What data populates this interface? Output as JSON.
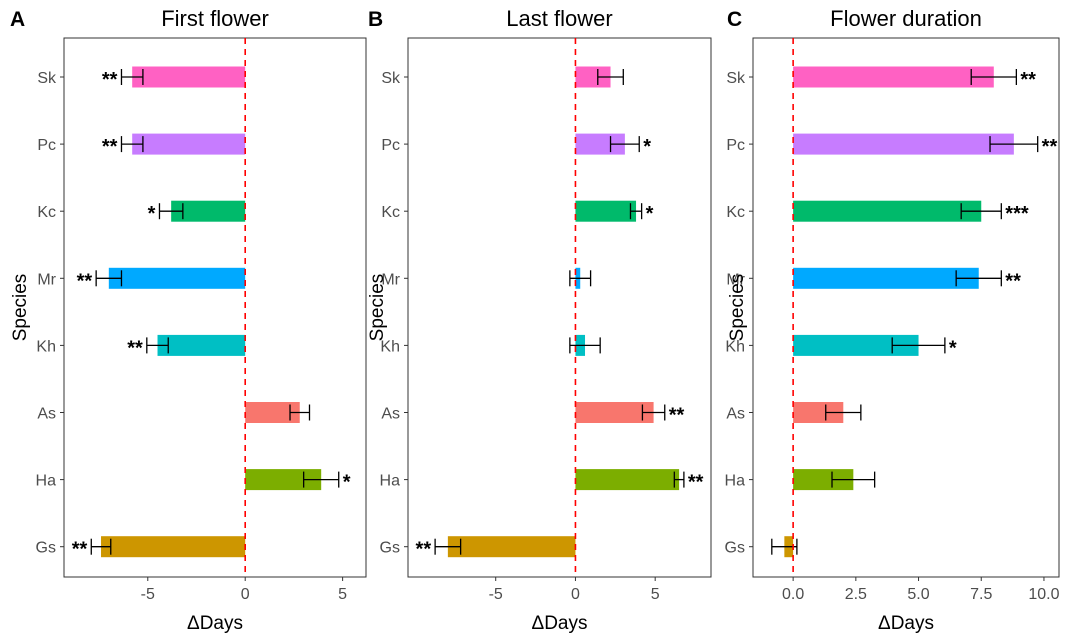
{
  "chart_data": [
    {
      "type": "bar",
      "panel_label": "A",
      "title": "First flower",
      "xlabel": "ΔDays",
      "ylabel": "Species",
      "xlim": [
        -9.3,
        6.2
      ],
      "xticks": [
        -5,
        0,
        5
      ],
      "xtick_labels": [
        "-5",
        "0",
        "5"
      ],
      "reference_line": 0,
      "categories": [
        "Sk",
        "Pc",
        "Kc",
        "Mr",
        "Kh",
        "As",
        "Ha",
        "Gs"
      ],
      "values": [
        -5.8,
        -5.8,
        -3.8,
        -7.0,
        -4.5,
        2.8,
        3.9,
        -7.4
      ],
      "error": [
        0.55,
        0.55,
        0.6,
        0.65,
        0.55,
        0.5,
        0.9,
        0.5
      ],
      "significance": [
        "**",
        "**",
        "*",
        "**",
        "**",
        "",
        "*",
        "**"
      ],
      "colors": [
        "#FF61C3",
        "#C77CFF",
        "#00BA6B",
        "#00A9FF",
        "#00BFC4",
        "#F8766D",
        "#7CAE00",
        "#CD9600"
      ],
      "grid": false
    },
    {
      "type": "bar",
      "panel_label": "B",
      "title": "Last flower",
      "xlabel": "ΔDays",
      "ylabel": "Species",
      "xlim": [
        -10.5,
        8.5
      ],
      "xticks": [
        -5,
        0,
        5
      ],
      "xtick_labels": [
        "-5",
        "0",
        "5"
      ],
      "reference_line": 0,
      "categories": [
        "Sk",
        "Pc",
        "Kc",
        "Mr",
        "Kh",
        "As",
        "Ha",
        "Gs"
      ],
      "values": [
        2.2,
        3.1,
        3.8,
        0.3,
        0.6,
        4.9,
        6.5,
        -8.0
      ],
      "error": [
        0.8,
        0.9,
        0.35,
        0.65,
        0.95,
        0.7,
        0.3,
        0.8
      ],
      "significance": [
        "",
        "*",
        "*",
        "",
        "",
        "**",
        "**",
        "**"
      ],
      "colors": [
        "#FF61C3",
        "#C77CFF",
        "#00BA6B",
        "#00A9FF",
        "#00BFC4",
        "#F8766D",
        "#7CAE00",
        "#CD9600"
      ],
      "grid": false
    },
    {
      "type": "bar",
      "panel_label": "C",
      "title": "Flower duration",
      "xlabel": "ΔDays",
      "ylabel": "Species",
      "xlim": [
        -1.6,
        10.6
      ],
      "xticks": [
        0,
        2.5,
        5,
        7.5,
        10
      ],
      "xtick_labels": [
        "0.0",
        "2.5",
        "5.0",
        "7.5",
        "10.0"
      ],
      "reference_line": 0,
      "categories": [
        "Sk",
        "Pc",
        "Kc",
        "Mr",
        "Kh",
        "As",
        "Ha",
        "Gs"
      ],
      "values": [
        8.0,
        8.8,
        7.5,
        7.4,
        5.0,
        2.0,
        2.4,
        -0.35
      ],
      "error": [
        0.9,
        0.95,
        0.8,
        0.9,
        1.05,
        0.7,
        0.85,
        0.5
      ],
      "significance": [
        "**",
        "**",
        "***",
        "**",
        "*",
        "",
        "",
        ""
      ],
      "colors": [
        "#FF61C3",
        "#C77CFF",
        "#00BA6B",
        "#00A9FF",
        "#00BFC4",
        "#F8766D",
        "#7CAE00",
        "#CD9600"
      ],
      "grid": false
    }
  ]
}
